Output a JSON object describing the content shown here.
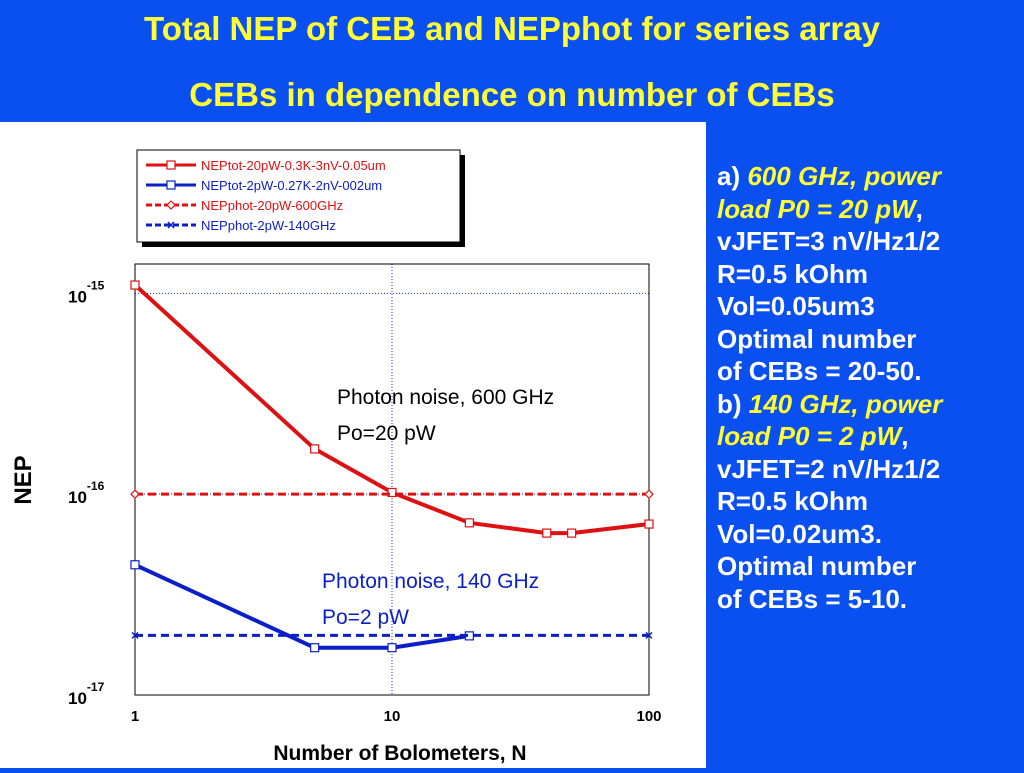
{
  "title": {
    "line1": "Total NEP of CEB  and NEPphot  for series array",
    "line2": "CEBs in dependence on number of CEBs"
  },
  "colors": {
    "background": "#0a4ff0",
    "title": "#ffff33",
    "red": "#dd1111",
    "blue": "#0b1fc8"
  },
  "side_text": {
    "a_prefix": "a) ",
    "a_italic_1": "600 GHz, power",
    "a_italic_2": "load P0 = 20 pW",
    "a_comma": ",",
    "a_line3": "vJFET=3 nV/Hz1/2",
    "a_line4": "R=0.5 kOhm",
    "a_line5": "Vol=0.05um3",
    "a_line6": "Optimal number",
    "a_line7": "of CEBs = 20-50.",
    "b_prefix": "b) ",
    "b_italic_1": "140 GHz, power",
    "b_italic_2": "load P0 = 2 pW",
    "b_comma": ",",
    "b_line3": "vJFET=2 nV/Hz1/2",
    "b_line4": "R=0.5 kOhm",
    "b_line5": "Vol=0.02um3.",
    "b_line6": "Optimal number",
    "b_line7": "of CEBs = 5-10."
  },
  "chart_data": {
    "type": "line",
    "title": "",
    "xlabel": "Number of Bolometers, N",
    "ylabel": "NEP",
    "xscale": "log",
    "yscale": "log",
    "xlim": [
      1,
      100
    ],
    "ylim": [
      1e-17,
      1.4e-15
    ],
    "grid": "dotted, at decades",
    "x_ticks": [
      {
        "value": 1,
        "label": "1"
      },
      {
        "value": 10,
        "label": "10"
      },
      {
        "value": 100,
        "label": "100"
      }
    ],
    "y_ticks": [
      {
        "value": 1e-15,
        "base": "10",
        "exp": "-15"
      },
      {
        "value": 1e-16,
        "base": "10",
        "exp": "-16"
      },
      {
        "value": 1e-17,
        "base": "10",
        "exp": "-17"
      }
    ],
    "legend_position": "top-left",
    "series": [
      {
        "name": "NEPtot-20pW-0.3K-3nV-0.05um",
        "color": "#dd1111",
        "dash": "solid",
        "marker": "square",
        "x": [
          1,
          5,
          10,
          20,
          40,
          50,
          100
        ],
        "y": [
          1.1e-15,
          1.68e-16,
          1.02e-16,
          7.2e-17,
          6.4e-17,
          6.4e-17,
          7.1e-17
        ]
      },
      {
        "name": "NEPtot-2pW-0.27K-2nV-002um",
        "color": "#0b1fc8",
        "dash": "solid",
        "marker": "square",
        "x": [
          1,
          5,
          10,
          20
        ],
        "y": [
          4.45e-17,
          1.72e-17,
          1.72e-17,
          1.97e-17
        ]
      },
      {
        "name": "NEPphot-20pW-600GHz",
        "color": "#dd1111",
        "dash": "dashed",
        "marker": "diamond",
        "x": [
          1,
          100
        ],
        "y": [
          1e-16,
          1e-16
        ]
      },
      {
        "name": "NEPphot-2pW-140GHz",
        "color": "#0b1fc8",
        "dash": "dashed",
        "marker": "x",
        "x": [
          1,
          100
        ],
        "y": [
          1.98e-17,
          1.98e-17
        ]
      }
    ],
    "annotations": [
      {
        "text": "Photon noise, 600 GHz",
        "color": "#000000"
      },
      {
        "text": "Po=20 pW",
        "color": "#000000"
      },
      {
        "text": "Photon noise, 140 GHz",
        "color": "#0b1fc8"
      },
      {
        "text": "Po=2 pW",
        "color": "#0b1fc8"
      }
    ]
  }
}
